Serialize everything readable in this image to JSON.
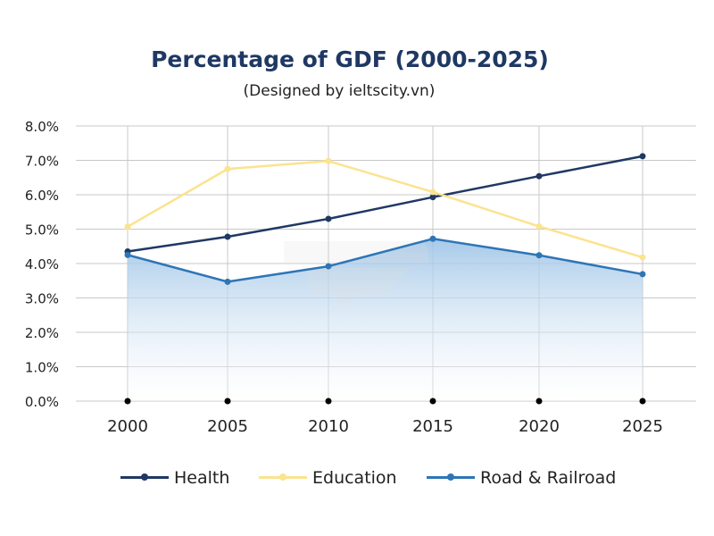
{
  "chart_data": {
    "type": "line",
    "title": "Percentage of GDF (2000-2025)",
    "subtitle": "(Designed by ieltscity.vn)",
    "xlabel": "",
    "ylabel": "",
    "categories": [
      "2000",
      "2005",
      "2010",
      "2015",
      "2020",
      "2025"
    ],
    "ylim": [
      0,
      8
    ],
    "yticks": [
      "0.0%",
      "1.0%",
      "2.0%",
      "3.0%",
      "4.0%",
      "5.0%",
      "6.0%",
      "7.0%",
      "8.0%"
    ],
    "grid": true,
    "legend_position": "bottom",
    "series": [
      {
        "name": "Health",
        "color": "#1f3864",
        "values": [
          4.35,
          4.78,
          5.3,
          5.93,
          6.54,
          7.12
        ]
      },
      {
        "name": "Education",
        "color": "#fbe38f",
        "values": [
          5.07,
          6.75,
          6.98,
          6.08,
          5.08,
          4.18
        ]
      },
      {
        "name": "Road & Railroad",
        "color": "#2e75b6",
        "values": [
          4.25,
          3.47,
          3.92,
          4.72,
          4.24,
          3.69
        ],
        "area_fill": true
      }
    ]
  }
}
